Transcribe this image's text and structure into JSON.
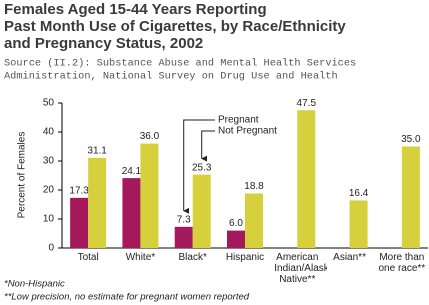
{
  "chart_data": {
    "type": "bar",
    "title": [
      "Females Aged 15-44 Years Reporting",
      "Past Month Use of Cigarettes, by Race/Ethnicity",
      "and Pregnancy Status, 2002"
    ],
    "subtitle": [
      "Source (II.2): Substance Abuse and Mental Health Services",
      "Administration, National Survey on Drug Use and Health"
    ],
    "y_label": "Percent of Females",
    "categories": [
      "Total",
      "White*",
      "Black*",
      "Hispanic",
      "American Indian/Alaska Native**",
      "Asian**",
      "More than one race**"
    ],
    "series": [
      {
        "name": "Pregnant",
        "color": "#a3195b",
        "values": [
          17.3,
          24.1,
          7.3,
          6.0,
          null,
          null,
          null
        ],
        "value_labels": [
          "17.3",
          "24.1",
          "7.3",
          "6.0",
          null,
          null,
          null
        ]
      },
      {
        "name": "Not Pregnant",
        "color": "#d6d03c",
        "values": [
          31.1,
          36.0,
          25.3,
          18.8,
          47.5,
          16.4,
          35.0
        ],
        "value_labels": [
          "31.1",
          "36.0",
          "25.3",
          "18.8",
          "47.5",
          "16.4",
          "35.0"
        ]
      }
    ],
    "ylim": [
      0,
      50
    ],
    "yticks": [
      0,
      10,
      20,
      30,
      40,
      50
    ],
    "grid": false,
    "footnotes": [
      "*Non-Hispanic",
      "**Low precision, no estimate for pregnant women reported"
    ]
  }
}
